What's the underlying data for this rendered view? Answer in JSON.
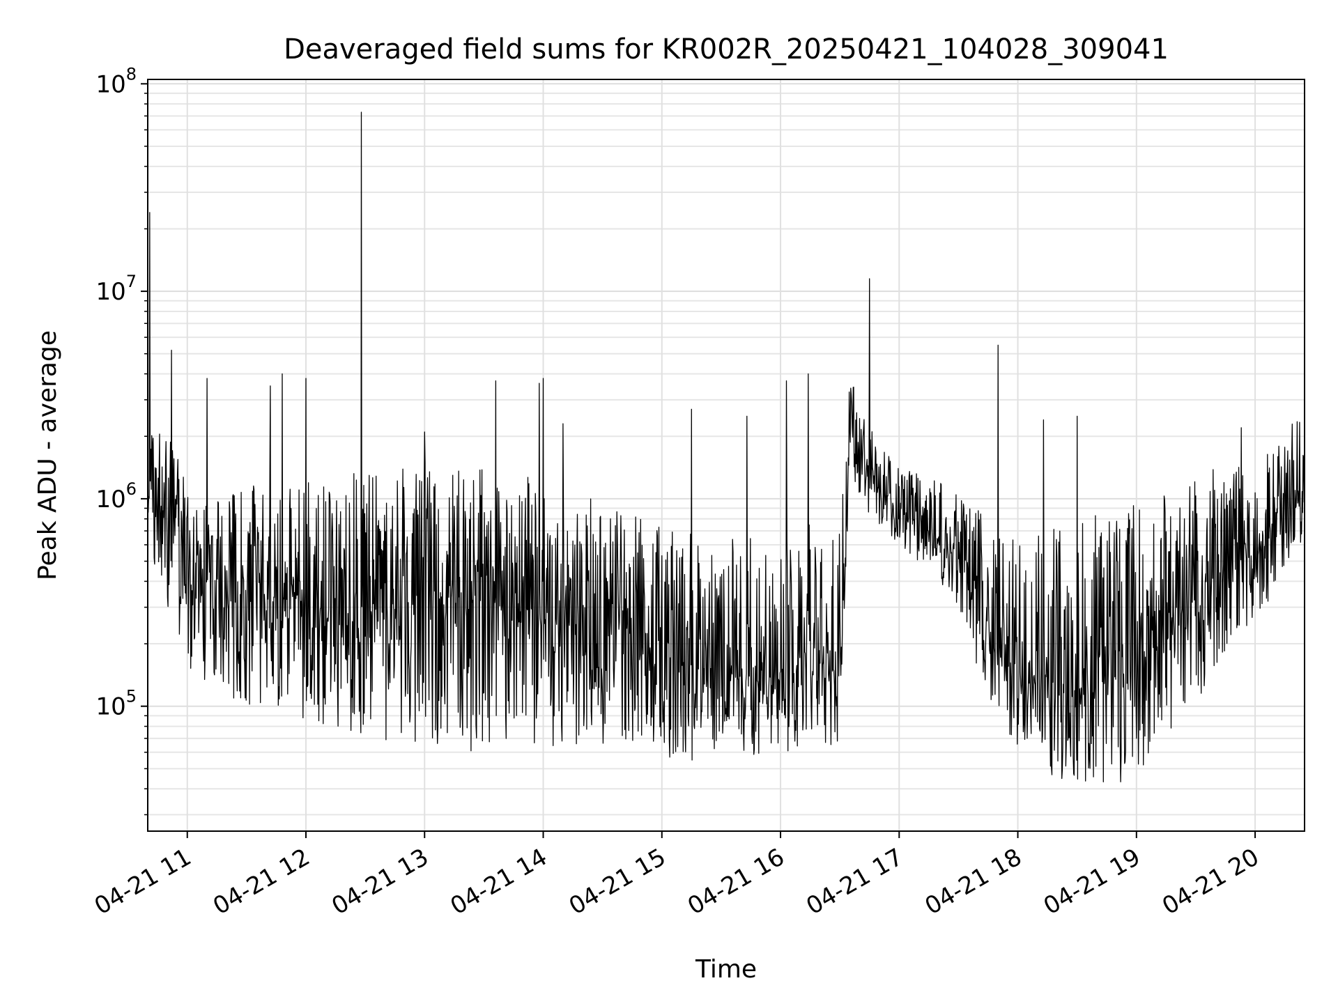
{
  "chart_data": {
    "type": "line",
    "title": "Deaveraged field sums for KR002R_20250421_104028_309041",
    "xlabel": "Time",
    "ylabel": "Peak ADU - average",
    "yscale": "log",
    "ylim": [
      25000,
      105000000
    ],
    "xlim": [
      "04-21 10:40",
      "04-21 20:25"
    ],
    "grid": true,
    "x_tick_labels": [
      "04-21 11",
      "04-21 12",
      "04-21 13",
      "04-21 14",
      "04-21 15",
      "04-21 16",
      "04-21 17",
      "04-21 18",
      "04-21 19",
      "04-21 20"
    ],
    "y_tick_labels": [
      {
        "base": "10",
        "exp": "5"
      },
      {
        "base": "10",
        "exp": "6"
      },
      {
        "base": "10",
        "exp": "7"
      },
      {
        "base": "10",
        "exp": "8"
      }
    ],
    "series": [
      {
        "color": "#000000",
        "x": [
          "04-21 10:40",
          "04-21 10:50",
          "04-21 11:00",
          "04-21 11:10",
          "04-21 11:20",
          "04-21 11:30",
          "04-21 11:40",
          "04-21 11:50",
          "04-21 12:00",
          "04-21 12:10",
          "04-21 12:20",
          "04-21 12:30",
          "04-21 12:40",
          "04-21 12:50",
          "04-21 13:00",
          "04-21 13:10",
          "04-21 13:20",
          "04-21 13:30",
          "04-21 13:40",
          "04-21 13:50",
          "04-21 14:00",
          "04-21 14:10",
          "04-21 14:20",
          "04-21 14:30",
          "04-21 14:40",
          "04-21 14:50",
          "04-21 15:00",
          "04-21 15:10",
          "04-21 15:20",
          "04-21 15:30",
          "04-21 15:40",
          "04-21 15:50",
          "04-21 16:00",
          "04-21 16:10",
          "04-21 16:20",
          "04-21 16:30",
          "04-21 16:35",
          "04-21 16:40",
          "04-21 16:50",
          "04-21 17:00",
          "04-21 17:10",
          "04-21 17:20",
          "04-21 17:30",
          "04-21 17:40",
          "04-21 17:50",
          "04-21 18:00",
          "04-21 18:10",
          "04-21 18:20",
          "04-21 18:30",
          "04-21 18:40",
          "04-21 18:50",
          "04-21 19:00",
          "04-21 19:10",
          "04-21 19:20",
          "04-21 19:30",
          "04-21 19:40",
          "04-21 19:50",
          "04-21 20:00",
          "04-21 20:10",
          "04-21 20:20"
        ],
        "y": [
          1200000,
          900000,
          550000,
          420000,
          380000,
          350000,
          340000,
          330000,
          330000,
          300000,
          280000,
          260000,
          270000,
          300000,
          320000,
          330000,
          330000,
          320000,
          300000,
          290000,
          280000,
          270000,
          280000,
          290000,
          260000,
          220000,
          200000,
          170000,
          150000,
          140000,
          140000,
          140000,
          150000,
          160000,
          150000,
          160000,
          2500000,
          1600000,
          1100000,
          950000,
          800000,
          600000,
          600000,
          350000,
          180000,
          140000,
          120000,
          110000,
          120000,
          130000,
          140000,
          150000,
          200000,
          280000,
          350000,
          450000,
          500000,
          550000,
          700000,
          1100000
        ],
        "low": [
          600000,
          300000,
          150000,
          120000,
          110000,
          100000,
          95000,
          90000,
          85000,
          80000,
          75000,
          70000,
          68000,
          65000,
          65000,
          62000,
          60000,
          58000,
          60000,
          62000,
          60000,
          58000,
          62000,
          65000,
          60000,
          58000,
          56000,
          55000,
          55000,
          56000,
          57000,
          58000,
          60000,
          62000,
          60000,
          63000,
          1500000,
          900000,
          700000,
          600000,
          500000,
          400000,
          300000,
          150000,
          80000,
          60000,
          50000,
          45000,
          42000,
          40000,
          42000,
          48000,
          60000,
          80000,
          100000,
          150000,
          200000,
          250000,
          300000,
          600000
        ],
        "high": [
          2700000,
          2200000,
          1200000,
          1000000,
          1100000,
          1200000,
          1300000,
          1300000,
          1300000,
          1400000,
          1400000,
          1400000,
          1400000,
          1500000,
          1500000,
          1400000,
          1400000,
          1400000,
          1300000,
          1300000,
          1200000,
          1100000,
          1000000,
          1000000,
          900000,
          800000,
          750000,
          700000,
          650000,
          650000,
          650000,
          650000,
          700000,
          750000,
          800000,
          900000,
          4500000,
          2800000,
          1800000,
          1500000,
          1300000,
          1200000,
          1100000,
          900000,
          700000,
          650000,
          700000,
          750000,
          800000,
          850000,
          900000,
          1000000,
          1100000,
          1200000,
          1300000,
          1400000,
          1500000,
          1600000,
          1700000,
          2500000
        ],
        "spikes": [
          {
            "x": "04-21 10:41",
            "y": 24000000
          },
          {
            "x": "04-21 10:52",
            "y": 5200000
          },
          {
            "x": "04-21 11:10",
            "y": 3800000
          },
          {
            "x": "04-21 11:42",
            "y": 3500000
          },
          {
            "x": "04-21 11:48",
            "y": 4000000
          },
          {
            "x": "04-21 12:00",
            "y": 3800000
          },
          {
            "x": "04-21 12:28",
            "y": 73000000
          },
          {
            "x": "04-21 13:00",
            "y": 2100000
          },
          {
            "x": "04-21 13:36",
            "y": 3700000
          },
          {
            "x": "04-21 13:58",
            "y": 3600000
          },
          {
            "x": "04-21 14:00",
            "y": 3800000
          },
          {
            "x": "04-21 14:10",
            "y": 2300000
          },
          {
            "x": "04-21 15:15",
            "y": 2700000
          },
          {
            "x": "04-21 15:43",
            "y": 2500000
          },
          {
            "x": "04-21 16:03",
            "y": 3700000
          },
          {
            "x": "04-21 16:14",
            "y": 4000000
          },
          {
            "x": "04-21 16:45",
            "y": 11500000
          },
          {
            "x": "04-21 17:50",
            "y": 5500000
          },
          {
            "x": "04-21 18:13",
            "y": 2400000
          },
          {
            "x": "04-21 18:30",
            "y": 2500000
          },
          {
            "x": "04-21 19:53",
            "y": 2200000
          }
        ]
      }
    ]
  }
}
